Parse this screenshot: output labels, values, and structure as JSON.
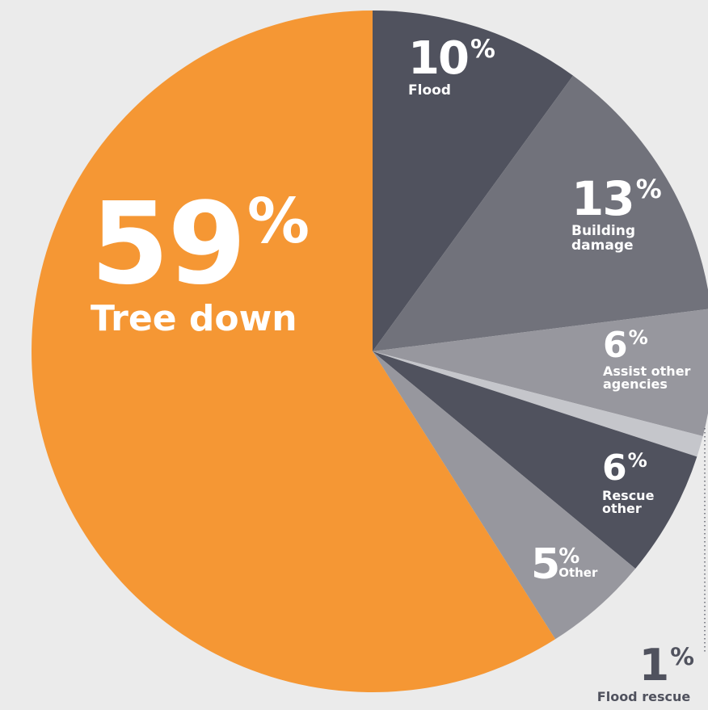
{
  "chart_data": {
    "type": "pie",
    "start_angle_deg": 0,
    "direction": "clockwise",
    "slices": [
      {
        "label": "Flood",
        "value": 10,
        "pct_text": "10",
        "color": "#50525e"
      },
      {
        "label": "Building damage",
        "value": 13,
        "pct_text": "13",
        "color": "#71727b"
      },
      {
        "label": "Assist other agencies",
        "value": 6,
        "pct_text": "6",
        "color": "#97979e"
      },
      {
        "label": "Flood rescue",
        "value": 1,
        "pct_text": "1",
        "color": "#c5c6cb"
      },
      {
        "label": "Rescue other",
        "value": 6,
        "pct_text": "6",
        "color": "#50525e"
      },
      {
        "label": "Other",
        "value": 5,
        "pct_text": "5",
        "color": "#97979e"
      },
      {
        "label": "Tree down",
        "value": 59,
        "pct_text": "59",
        "color": "#f59734"
      }
    ],
    "percent_sign": "%",
    "background": "#ebebeb"
  }
}
